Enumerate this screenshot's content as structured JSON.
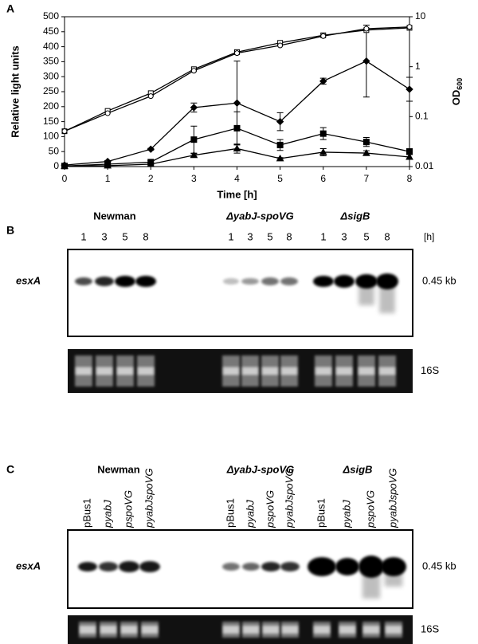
{
  "chart_data": {
    "type": "line",
    "panel_label": "A",
    "xlabel": "Time [h]",
    "ylabel": "Relative light units",
    "y2label": {
      "text": "OD",
      "subscript": "600"
    },
    "x": [
      0,
      1,
      2,
      3,
      4,
      5,
      6,
      7,
      8
    ],
    "xlim": [
      0,
      8
    ],
    "xticks": [
      0,
      1,
      2,
      3,
      4,
      5,
      6,
      7,
      8
    ],
    "ylim": [
      0,
      500
    ],
    "yticks": [
      0,
      50,
      100,
      150,
      200,
      250,
      300,
      350,
      400,
      450,
      500
    ],
    "y2lim": [
      0.01,
      10
    ],
    "y2ticks": [
      0.01,
      0.1,
      1,
      10
    ],
    "y2log": true,
    "series": [
      {
        "marker": "diamond",
        "color": "#000000",
        "values": [
          5,
          17,
          58,
          197,
          212,
          150,
          285,
          352,
          258
        ],
        "errors": [
          0,
          3,
          3,
          15,
          140,
          30,
          10,
          120,
          40
        ]
      },
      {
        "marker": "square",
        "color": "#000000",
        "values": [
          2,
          8,
          15,
          90,
          128,
          72,
          110,
          82,
          50
        ],
        "errors": [
          0,
          3,
          5,
          45,
          55,
          18,
          20,
          15,
          10
        ]
      },
      {
        "marker": "triangle",
        "color": "#000000",
        "values": [
          1,
          3,
          8,
          38,
          60,
          27,
          48,
          45,
          32
        ],
        "errors": [
          0,
          2,
          3,
          5,
          15,
          3,
          12,
          8,
          8
        ]
      },
      {
        "marker": "square-open",
        "color": "#000000",
        "axis": "y2",
        "values": [
          0.051,
          0.13,
          0.295,
          0.89,
          1.96,
          3.0,
          4.25,
          5.4,
          6.0
        ]
      },
      {
        "marker": "circle-open",
        "color": "#000000",
        "axis": "y2",
        "values": [
          0.051,
          0.117,
          0.257,
          0.83,
          1.87,
          2.66,
          4.1,
          5.75,
          6.25
        ]
      }
    ]
  },
  "panel_b": {
    "label": "B",
    "groups": [
      {
        "name": "Newman",
        "lanes": [
          "1",
          "3",
          "5",
          "8"
        ]
      },
      {
        "name": "ΔyabJ-spoVG",
        "lanes": [
          "1",
          "3",
          "5",
          "8"
        ]
      },
      {
        "name": "ΔsigB",
        "lanes": [
          "1",
          "3",
          "5",
          "8"
        ]
      }
    ],
    "unit": "[h]",
    "gene": "esxA",
    "size": "0.45 kb",
    "loading": "16S"
  },
  "panel_c": {
    "label": "C",
    "groups": [
      {
        "name": "Newman",
        "lanes": [
          "pBus1",
          "pyabJ",
          "pspoVG",
          "pyabJspoVG"
        ]
      },
      {
        "name": "ΔyabJ-spoVG",
        "lanes": [
          "pBus1",
          "pyabJ",
          "pspoVG",
          "pyabJspoVG"
        ]
      },
      {
        "name": "ΔsigB",
        "lanes": [
          "pBus1",
          "pyabJ",
          "pspoVG",
          "pyabJspoVG"
        ]
      }
    ],
    "gene": "esxA",
    "size": "0.45 kb",
    "loading": "16S"
  }
}
